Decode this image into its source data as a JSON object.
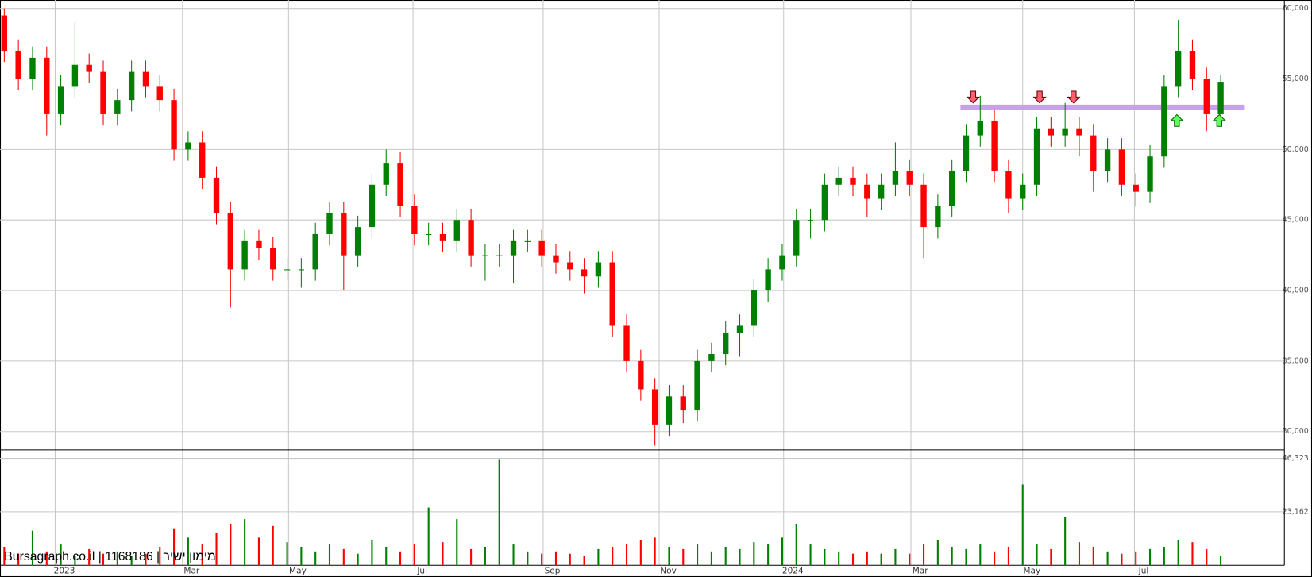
{
  "chart_data": {
    "type": "candlestick",
    "title": "Bursagraph.co.il | 1168186 | מימון ישיר",
    "categories": [
      null,
      null,
      null,
      null,
      null,
      null,
      null,
      null,
      null,
      null,
      null,
      null,
      null,
      null,
      null,
      null,
      null,
      null,
      null,
      null,
      null,
      null,
      null,
      null,
      null,
      null,
      null,
      null,
      null,
      null,
      null,
      null,
      null,
      null,
      null,
      null,
      null,
      null,
      null,
      null,
      null,
      null,
      null,
      null,
      null,
      null,
      null,
      null,
      null,
      null,
      null,
      null,
      null,
      null,
      null,
      null,
      null,
      null,
      null,
      null,
      null,
      null,
      null,
      null,
      null,
      null,
      null,
      null,
      null,
      null,
      null,
      null,
      null,
      null,
      null,
      null,
      null,
      null,
      null,
      null,
      null,
      null,
      null,
      null,
      null,
      null,
      null
    ],
    "open": [
      59500,
      57000,
      55000,
      56500,
      52500,
      54500,
      56000,
      55500,
      52500,
      53500,
      55500,
      54500,
      53500,
      50000,
      50500,
      48000,
      45500,
      41500,
      43500,
      43000,
      41500,
      41500,
      41500,
      44000,
      45500,
      42500,
      44500,
      47500,
      49000,
      46000,
      44000,
      44000,
      43500,
      45000,
      42500,
      42500,
      42500,
      43500,
      43500,
      42500,
      42000,
      41500,
      41000,
      42000,
      37500,
      35000,
      33000,
      30500,
      32500,
      31500,
      35000,
      35500,
      37000,
      37500,
      40000,
      41500,
      42500,
      45000,
      45000,
      47500,
      48000,
      47500,
      46500,
      47500,
      48500,
      47500,
      44500,
      46000,
      48500,
      51000,
      52000,
      48500,
      46500,
      47500,
      51500,
      51000,
      51500,
      51000,
      48500,
      50000,
      47500,
      47000,
      49500,
      54500,
      57000,
      55000,
      52500
    ],
    "high": [
      60000,
      57800,
      57300,
      57300,
      55300,
      59000,
      56800,
      56300,
      54300,
      56300,
      56300,
      55300,
      54300,
      51300,
      51300,
      48800,
      46300,
      44300,
      44300,
      43800,
      42300,
      42300,
      44800,
      46300,
      46300,
      45300,
      48300,
      50000,
      49800,
      46800,
      44800,
      44800,
      45800,
      45800,
      43300,
      43300,
      44300,
      44300,
      44300,
      43300,
      42800,
      42300,
      42800,
      42800,
      38300,
      35800,
      33800,
      33300,
      33300,
      35800,
      36300,
      37800,
      38300,
      40800,
      42300,
      43300,
      45800,
      45800,
      48300,
      48800,
      48800,
      48300,
      48300,
      50500,
      49300,
      48300,
      46800,
      49300,
      51800,
      53800,
      52800,
      49300,
      48300,
      52300,
      52300,
      53300,
      52300,
      51800,
      50800,
      50800,
      48300,
      50300,
      55300,
      59200,
      57800,
      55800,
      55300
    ],
    "low": [
      56200,
      54200,
      54200,
      51000,
      51700,
      53700,
      54700,
      51700,
      51700,
      52700,
      53700,
      52700,
      49200,
      49200,
      47200,
      44700,
      38800,
      40700,
      42200,
      40700,
      40700,
      40200,
      40700,
      43200,
      40000,
      41700,
      43700,
      46700,
      45200,
      43200,
      43200,
      42700,
      42700,
      41700,
      40700,
      41700,
      40500,
      42700,
      41700,
      41200,
      40700,
      39800,
      40200,
      36700,
      34200,
      32200,
      29000,
      29700,
      30600,
      30700,
      34200,
      34700,
      35300,
      36700,
      39200,
      40700,
      41700,
      43700,
      44200,
      46700,
      46700,
      45200,
      45700,
      46700,
      46700,
      42300,
      43700,
      45200,
      47700,
      50200,
      47700,
      45500,
      45700,
      46700,
      50200,
      50200,
      49500,
      47000,
      47700,
      46700,
      46000,
      46200,
      48700,
      53700,
      54200,
      51300,
      51700
    ],
    "close": [
      57000,
      55000,
      56500,
      52500,
      54500,
      56000,
      55500,
      52500,
      53500,
      55500,
      54500,
      53500,
      50000,
      50500,
      48000,
      45500,
      41500,
      43500,
      43000,
      41500,
      41500,
      41500,
      44000,
      45500,
      42500,
      44500,
      47500,
      49000,
      46000,
      44000,
      44000,
      43500,
      45000,
      42500,
      42500,
      42500,
      43500,
      43500,
      42500,
      42000,
      41500,
      41000,
      42000,
      37500,
      35000,
      33000,
      30500,
      32500,
      31500,
      35000,
      35500,
      37000,
      37500,
      40000,
      41500,
      42500,
      45000,
      45000,
      47500,
      48000,
      47500,
      46500,
      47500,
      48500,
      47500,
      44500,
      46000,
      48500,
      51000,
      52000,
      48500,
      46500,
      47500,
      51500,
      51000,
      51500,
      51000,
      48500,
      50000,
      47500,
      47000,
      49500,
      54500,
      57000,
      55000,
      52500,
      54800
    ],
    "volume": [
      8000,
      5000,
      15000,
      6000,
      9000,
      4000,
      7000,
      5000,
      6000,
      4000,
      5000,
      8000,
      16000,
      12000,
      9000,
      14000,
      18000,
      20000,
      12000,
      17000,
      10000,
      8000,
      6000,
      9000,
      7000,
      5000,
      11000,
      8000,
      6000,
      9000,
      25000,
      10000,
      20000,
      7000,
      8000,
      46000,
      9000,
      6000,
      5000,
      6000,
      5000,
      4000,
      7000,
      8000,
      9000,
      11000,
      12000,
      8000,
      7000,
      9000,
      6000,
      8000,
      7000,
      10000,
      9000,
      12000,
      18000,
      9000,
      7000,
      6000,
      5000,
      6000,
      5000,
      7000,
      5000,
      9000,
      11000,
      8000,
      7000,
      9000,
      6000,
      8000,
      35000,
      9000,
      7000,
      21000,
      10000,
      8000,
      6000,
      5000,
      6000,
      7000,
      8000,
      11000,
      10000,
      7000,
      4000
    ],
    "up_color": "#008000",
    "down_color": "#ff0000",
    "xlim": [
      -0.3,
      90.5
    ],
    "xticks": [
      {
        "value": 3.6,
        "label": "2023"
      },
      {
        "value": 12.6,
        "label": "Mar"
      },
      {
        "value": 20.1,
        "label": "May"
      },
      {
        "value": 28.9,
        "label": "Jul"
      },
      {
        "value": 38.1,
        "label": "Sep"
      },
      {
        "value": 46.3,
        "label": "Nov"
      },
      {
        "value": 55.1,
        "label": "2024"
      },
      {
        "value": 64.1,
        "label": "Mar"
      },
      {
        "value": 72.0,
        "label": "May"
      },
      {
        "value": 79.9,
        "label": "Jul"
      }
    ],
    "ylim": [
      28700,
      60600
    ],
    "yticks": [
      {
        "value": 30000,
        "label": "30,000"
      },
      {
        "value": 35000,
        "label": "35,000"
      },
      {
        "value": 40000,
        "label": "40,000"
      },
      {
        "value": 45000,
        "label": "45,000"
      },
      {
        "value": 50000,
        "label": "50,000"
      },
      {
        "value": 55000,
        "label": "55,000"
      },
      {
        "value": 60000,
        "label": "60,000"
      }
    ],
    "volume_ylim": [
      0,
      50000
    ],
    "volume_yticks": [
      {
        "value": 23162,
        "label": "23,162"
      },
      {
        "value": 46323,
        "label": "46,323"
      }
    ],
    "grid": true,
    "resistance": {
      "value": 53000,
      "x": [
        67.6,
        87.7
      ],
      "color": "#c8a0f0"
    },
    "signals": [
      {
        "direction": "down",
        "x": 68.5
      },
      {
        "direction": "down",
        "x": 73.2
      },
      {
        "direction": "down",
        "x": 75.6
      },
      {
        "direction": "up",
        "x": 82.9
      },
      {
        "direction": "up",
        "x": 85.9
      }
    ]
  }
}
